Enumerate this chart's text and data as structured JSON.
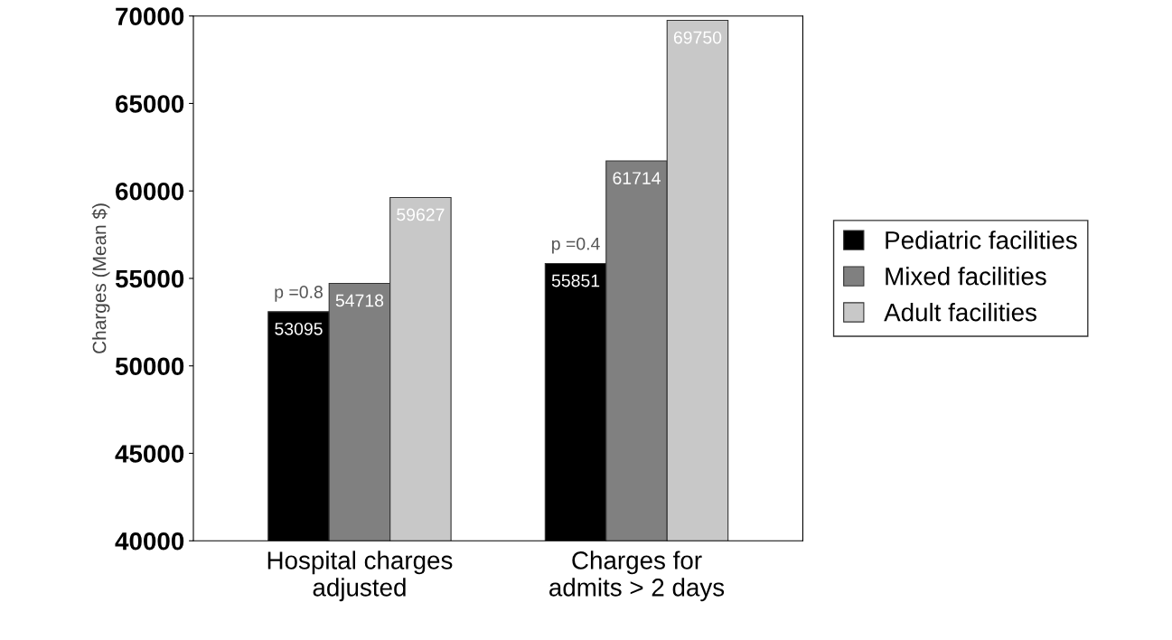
{
  "chart_data": {
    "type": "bar",
    "ylabel": "Charges (Mean $)",
    "categories": [
      "Hospital charges\nadjusted",
      "Charges for\nadmits > 2 days"
    ],
    "series": [
      {
        "name": "Pediatric facilities",
        "color": "#000000",
        "values": [
          53095,
          55851
        ]
      },
      {
        "name": "Mixed facilities",
        "color": "#808080",
        "values": [
          54718,
          61714
        ]
      },
      {
        "name": "Adult facilities",
        "color": "#c8c8c8",
        "values": [
          59627,
          69750
        ]
      }
    ],
    "ylim": [
      40000,
      70000
    ],
    "yticks": [
      40000,
      45000,
      50000,
      55000,
      60000,
      65000,
      70000
    ],
    "data_labels": true,
    "grid": false,
    "legend": "right",
    "annotations": [
      "p =0.8",
      "p =0.4"
    ]
  }
}
